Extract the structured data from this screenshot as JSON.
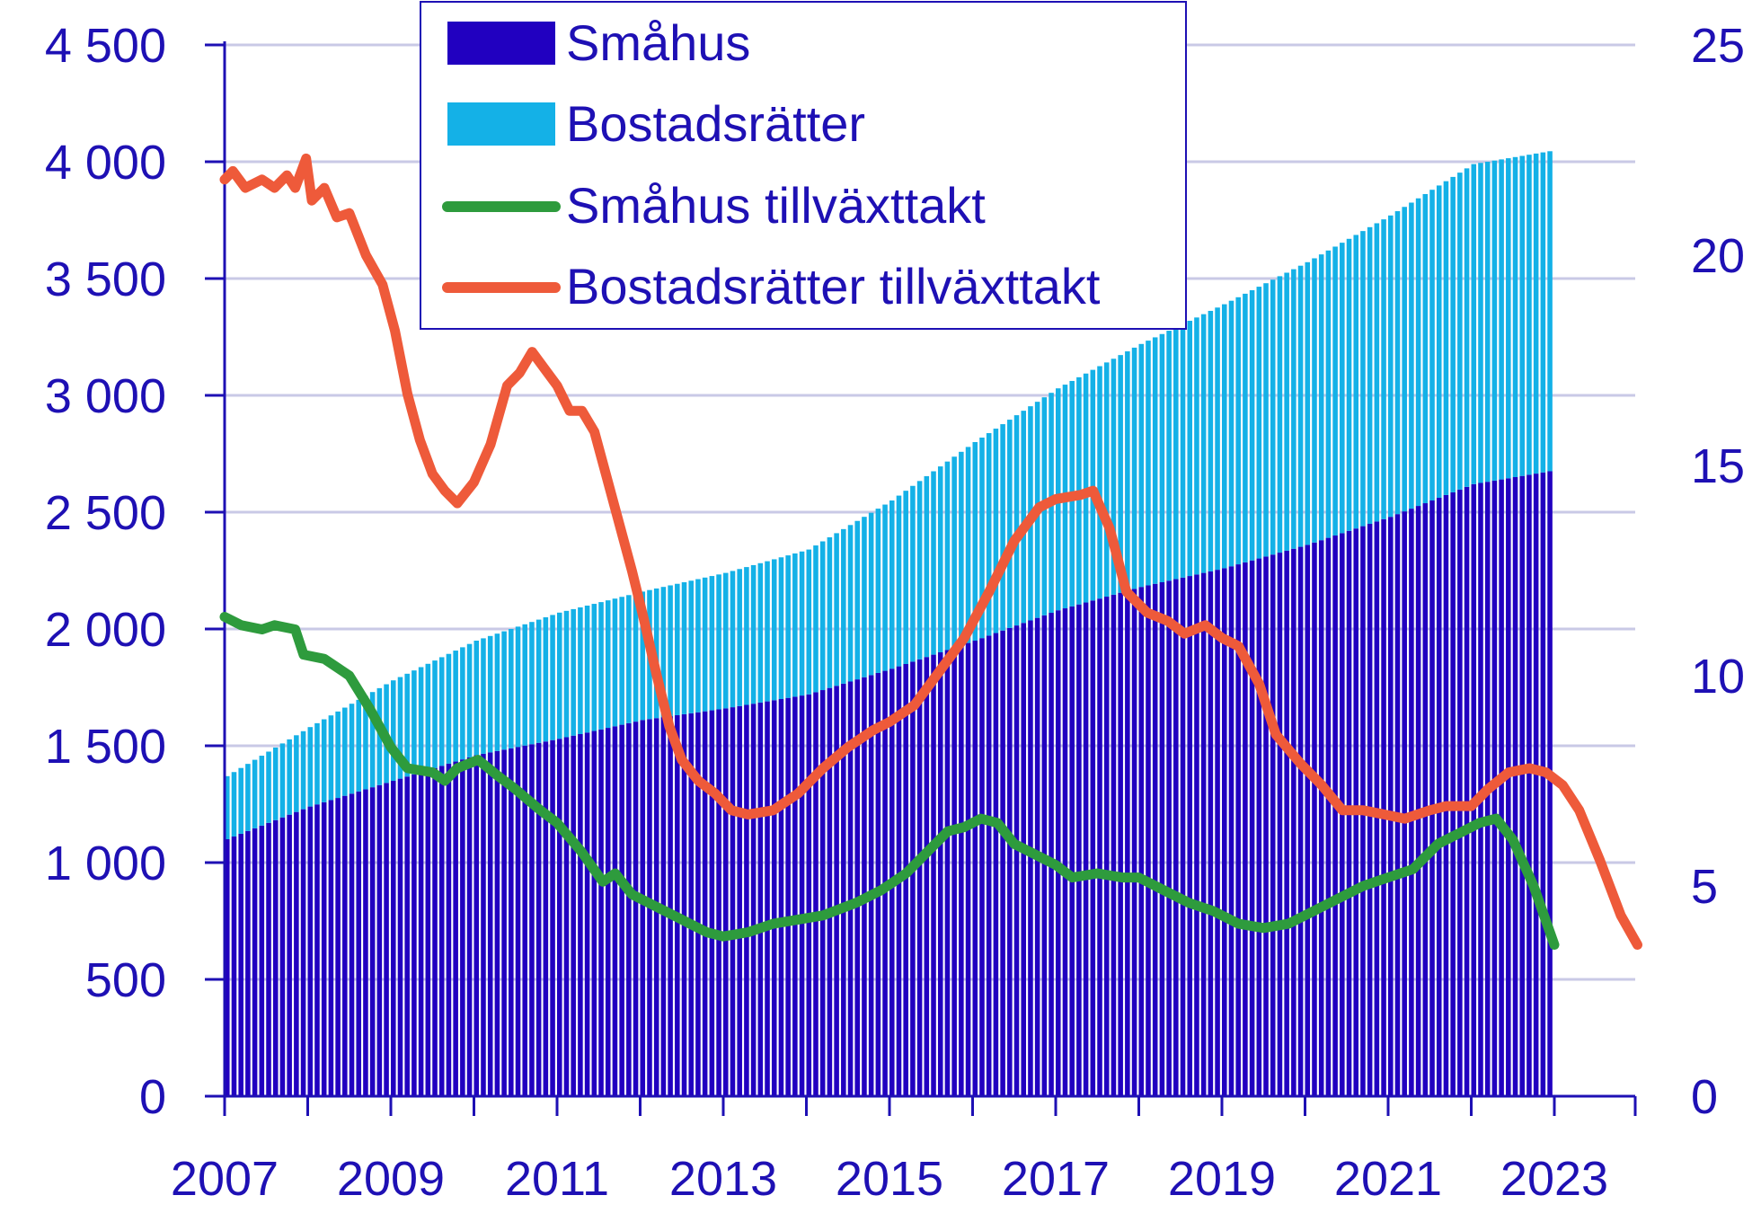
{
  "chart_data": {
    "type": "bar+line",
    "colors": {
      "smahus_bar": "#2100C0",
      "bostadsratter_bar": "#14B1E7",
      "smahus_line": "#2E9B3D",
      "bostadsratter_line": "#EE5A3A",
      "text": "#1E10B4",
      "grid": "#C9C9E6",
      "axis": "#1E10B4"
    },
    "legend": {
      "placement": "top-center",
      "items": [
        {
          "label": "Småhus",
          "kind": "bar",
          "color": "#2100C0"
        },
        {
          "label": "Bostadsrätter",
          "kind": "bar",
          "color": "#14B1E7"
        },
        {
          "label": "Småhus tillväxttakt",
          "kind": "line",
          "color": "#2E9B3D"
        },
        {
          "label": "Bostadsrätter tillväxttakt",
          "kind": "line",
          "color": "#EE5A3A"
        }
      ]
    },
    "x_axis": {
      "range": [
        2007,
        2023
      ],
      "tick_values": [
        2007,
        2009,
        2011,
        2013,
        2015,
        2017,
        2019,
        2021,
        2023
      ],
      "tick_labels": [
        "2007",
        "2009",
        "2011",
        "2013",
        "2015",
        "2017",
        "2019",
        "2021",
        "2023"
      ]
    },
    "y_left": {
      "range": [
        0,
        4500
      ],
      "tick_values": [
        0,
        500,
        1000,
        1500,
        2000,
        2500,
        3000,
        3500,
        4000,
        4500
      ],
      "tick_labels": [
        "0",
        "500",
        "1 000",
        "1 500",
        "2 000",
        "2 500",
        "3 000",
        "3 500",
        "4 000",
        "4 500"
      ]
    },
    "y_right": {
      "range": [
        0,
        25
      ],
      "tick_values": [
        0,
        5,
        10,
        15,
        20,
        25
      ],
      "tick_labels": [
        "0",
        "5",
        "10",
        "15",
        "20",
        "25"
      ]
    },
    "grid": true,
    "bar_series": {
      "interval": "monthly",
      "start": 2007.0,
      "end": 2023.0,
      "smahus_anchors": [
        [
          2007.0,
          1100
        ],
        [
          2008.0,
          1240
        ],
        [
          2009.0,
          1350
        ],
        [
          2010.0,
          1460
        ],
        [
          2011.0,
          1530
        ],
        [
          2012.0,
          1610
        ],
        [
          2013.0,
          1660
        ],
        [
          2014.0,
          1720
        ],
        [
          2015.0,
          1830
        ],
        [
          2016.0,
          1950
        ],
        [
          2017.0,
          2080
        ],
        [
          2018.0,
          2180
        ],
        [
          2019.0,
          2260
        ],
        [
          2020.0,
          2360
        ],
        [
          2021.0,
          2480
        ],
        [
          2022.0,
          2620
        ],
        [
          2023.0,
          2680
        ]
      ],
      "bostadsratter_anchors": [
        [
          2007.0,
          270
        ],
        [
          2008.0,
          340
        ],
        [
          2009.0,
          430
        ],
        [
          2010.0,
          490
        ],
        [
          2011.0,
          540
        ],
        [
          2012.0,
          550
        ],
        [
          2013.0,
          580
        ],
        [
          2014.0,
          620
        ],
        [
          2015.0,
          720
        ],
        [
          2016.0,
          850
        ],
        [
          2017.0,
          950
        ],
        [
          2018.0,
          1040
        ],
        [
          2019.0,
          1130
        ],
        [
          2020.0,
          1210
        ],
        [
          2021.0,
          1290
        ],
        [
          2022.0,
          1370
        ],
        [
          2023.0,
          1370
        ]
      ]
    },
    "line_series": [
      {
        "name": "Småhus tillväxttakt",
        "axis": "right",
        "points": [
          [
            2007.0,
            11.4
          ],
          [
            2007.2,
            11.2
          ],
          [
            2007.45,
            11.1
          ],
          [
            2007.6,
            11.2
          ],
          [
            2007.85,
            11.1
          ],
          [
            2007.95,
            10.5
          ],
          [
            2008.2,
            10.4
          ],
          [
            2008.5,
            10.0
          ],
          [
            2008.75,
            9.2
          ],
          [
            2009.0,
            8.3
          ],
          [
            2009.2,
            7.8
          ],
          [
            2009.5,
            7.7
          ],
          [
            2009.65,
            7.5
          ],
          [
            2009.8,
            7.8
          ],
          [
            2010.05,
            8.0
          ],
          [
            2010.3,
            7.6
          ],
          [
            2010.5,
            7.3
          ],
          [
            2010.8,
            6.8
          ],
          [
            2011.0,
            6.5
          ],
          [
            2011.3,
            5.8
          ],
          [
            2011.55,
            5.1
          ],
          [
            2011.7,
            5.3
          ],
          [
            2011.9,
            4.8
          ],
          [
            2012.2,
            4.5
          ],
          [
            2012.5,
            4.2
          ],
          [
            2012.8,
            3.9
          ],
          [
            2013.0,
            3.8
          ],
          [
            2013.3,
            3.9
          ],
          [
            2013.6,
            4.1
          ],
          [
            2013.9,
            4.2
          ],
          [
            2014.2,
            4.3
          ],
          [
            2014.6,
            4.6
          ],
          [
            2014.9,
            4.9
          ],
          [
            2015.2,
            5.3
          ],
          [
            2015.5,
            5.9
          ],
          [
            2015.7,
            6.3
          ],
          [
            2015.9,
            6.4
          ],
          [
            2016.1,
            6.6
          ],
          [
            2016.3,
            6.5
          ],
          [
            2016.5,
            6.0
          ],
          [
            2016.8,
            5.7
          ],
          [
            2017.0,
            5.5
          ],
          [
            2017.2,
            5.2
          ],
          [
            2017.5,
            5.3
          ],
          [
            2017.8,
            5.2
          ],
          [
            2018.0,
            5.2
          ],
          [
            2018.3,
            4.9
          ],
          [
            2018.6,
            4.6
          ],
          [
            2018.9,
            4.4
          ],
          [
            2019.2,
            4.1
          ],
          [
            2019.5,
            4.0
          ],
          [
            2019.8,
            4.1
          ],
          [
            2020.1,
            4.4
          ],
          [
            2020.4,
            4.7
          ],
          [
            2020.7,
            5.0
          ],
          [
            2021.0,
            5.2
          ],
          [
            2021.3,
            5.4
          ],
          [
            2021.6,
            6.0
          ],
          [
            2021.9,
            6.3
          ],
          [
            2022.1,
            6.5
          ],
          [
            2022.3,
            6.6
          ],
          [
            2022.5,
            6.1
          ],
          [
            2022.75,
            5.0
          ],
          [
            2023.0,
            3.6
          ]
        ]
      },
      {
        "name": "Bostadsrätter tillväxttakt",
        "axis": "right",
        "points": [
          [
            2007.0,
            21.8
          ],
          [
            2007.1,
            22.0
          ],
          [
            2007.25,
            21.6
          ],
          [
            2007.45,
            21.8
          ],
          [
            2007.6,
            21.6
          ],
          [
            2007.75,
            21.9
          ],
          [
            2007.85,
            21.6
          ],
          [
            2007.98,
            22.3
          ],
          [
            2008.05,
            21.3
          ],
          [
            2008.2,
            21.6
          ],
          [
            2008.35,
            20.9
          ],
          [
            2008.5,
            21.0
          ],
          [
            2008.7,
            20.0
          ],
          [
            2008.9,
            19.3
          ],
          [
            2009.05,
            18.2
          ],
          [
            2009.2,
            16.7
          ],
          [
            2009.35,
            15.6
          ],
          [
            2009.5,
            14.8
          ],
          [
            2009.65,
            14.4
          ],
          [
            2009.8,
            14.1
          ],
          [
            2010.0,
            14.6
          ],
          [
            2010.2,
            15.5
          ],
          [
            2010.4,
            16.9
          ],
          [
            2010.55,
            17.2
          ],
          [
            2010.7,
            17.7
          ],
          [
            2010.85,
            17.3
          ],
          [
            2011.0,
            16.9
          ],
          [
            2011.15,
            16.3
          ],
          [
            2011.3,
            16.3
          ],
          [
            2011.45,
            15.8
          ],
          [
            2011.6,
            14.7
          ],
          [
            2011.75,
            13.6
          ],
          [
            2011.9,
            12.5
          ],
          [
            2012.05,
            11.3
          ],
          [
            2012.2,
            10.0
          ],
          [
            2012.35,
            8.8
          ],
          [
            2012.5,
            8.0
          ],
          [
            2012.7,
            7.5
          ],
          [
            2012.9,
            7.2
          ],
          [
            2013.1,
            6.8
          ],
          [
            2013.3,
            6.7
          ],
          [
            2013.6,
            6.8
          ],
          [
            2013.9,
            7.2
          ],
          [
            2014.2,
            7.8
          ],
          [
            2014.5,
            8.3
          ],
          [
            2014.8,
            8.7
          ],
          [
            2015.0,
            8.9
          ],
          [
            2015.3,
            9.3
          ],
          [
            2015.6,
            10.1
          ],
          [
            2015.9,
            10.9
          ],
          [
            2016.2,
            12.0
          ],
          [
            2016.5,
            13.2
          ],
          [
            2016.8,
            14.0
          ],
          [
            2017.0,
            14.2
          ],
          [
            2017.3,
            14.3
          ],
          [
            2017.45,
            14.4
          ],
          [
            2017.65,
            13.5
          ],
          [
            2017.85,
            12.0
          ],
          [
            2018.1,
            11.5
          ],
          [
            2018.35,
            11.3
          ],
          [
            2018.55,
            11.0
          ],
          [
            2018.8,
            11.2
          ],
          [
            2019.0,
            10.9
          ],
          [
            2019.2,
            10.7
          ],
          [
            2019.45,
            9.8
          ],
          [
            2019.65,
            8.6
          ],
          [
            2019.95,
            7.9
          ],
          [
            2020.2,
            7.4
          ],
          [
            2020.45,
            6.8
          ],
          [
            2020.7,
            6.8
          ],
          [
            2020.95,
            6.7
          ],
          [
            2021.2,
            6.6
          ],
          [
            2021.5,
            6.8
          ],
          [
            2021.7,
            6.9
          ],
          [
            2022.0,
            6.9
          ],
          [
            2022.2,
            7.3
          ],
          [
            2022.45,
            7.7
          ],
          [
            2022.7,
            7.8
          ],
          [
            2022.9,
            7.7
          ],
          [
            2023.1,
            7.4
          ],
          [
            2023.3,
            6.8
          ],
          [
            2023.55,
            5.6
          ],
          [
            2023.8,
            4.3
          ],
          [
            2024.0,
            3.6
          ]
        ]
      }
    ]
  }
}
